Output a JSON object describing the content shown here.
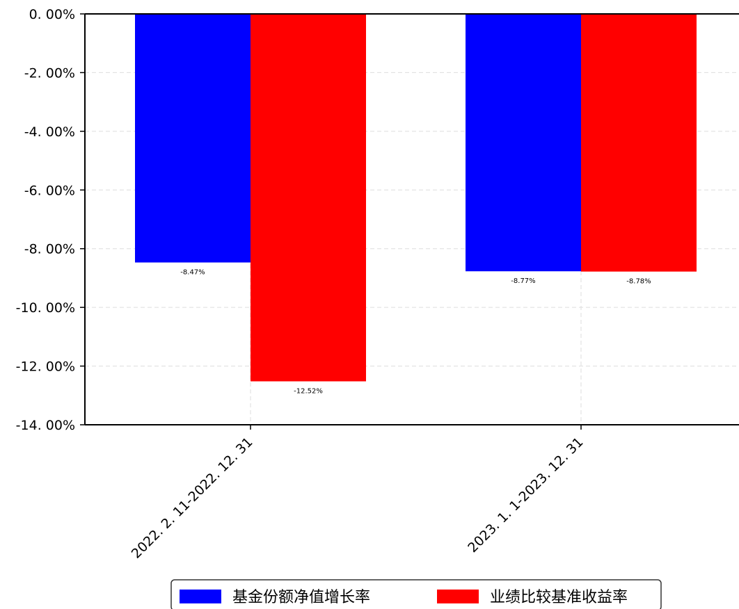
{
  "chart_data": {
    "type": "bar",
    "categories": [
      "2022. 2. 11-2022. 12. 31",
      "2023. 1. 1-2023. 12. 31"
    ],
    "series": [
      {
        "name": "基金份额净值增长率",
        "values": [
          -8.47,
          -8.77
        ],
        "labels": [
          "-8.47%",
          "-8.77%"
        ],
        "color": "#0000ff"
      },
      {
        "name": "业绩比较基准收益率",
        "values": [
          -12.52,
          -8.78
        ],
        "labels": [
          "-12.52%",
          "-8.78%"
        ],
        "color": "#ff0000"
      }
    ],
    "y_ticks": [
      0,
      -2,
      -4,
      -6,
      -8,
      -10,
      -12,
      -14
    ],
    "y_tick_labels": [
      "0. 00%",
      "-2. 00%",
      "-4. 00%",
      "-6. 00%",
      "-8. 00%",
      "-10. 00%",
      "-12. 00%",
      "-14. 00%"
    ],
    "ylim": [
      -14,
      0
    ],
    "grid": true,
    "legend_position": "bottom-center"
  }
}
